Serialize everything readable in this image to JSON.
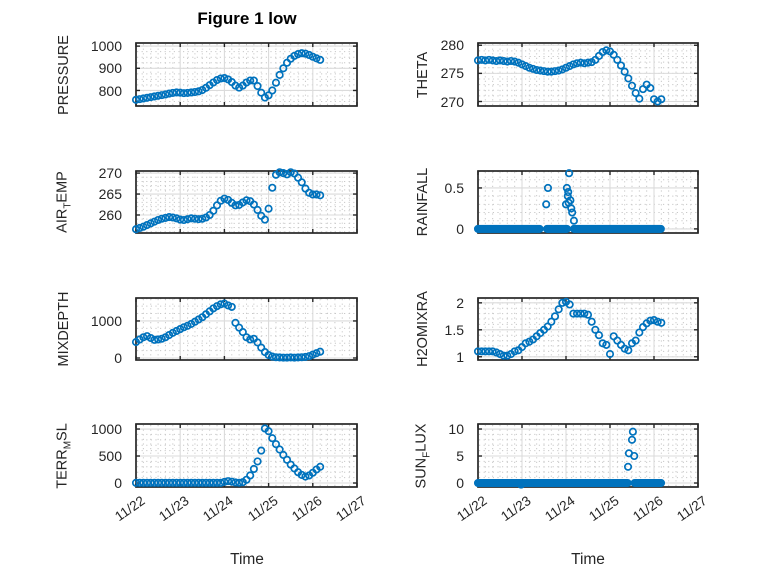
{
  "title": "Figure 1 low",
  "xlabel": "Time",
  "colors": {
    "marker": "#0072BD",
    "axis": "#262626",
    "text": "#262626",
    "major_grid": "#dbdbdb",
    "minor_grid": "#c8c8c8",
    "background": "#ffffff"
  },
  "x_ticks": [
    "11/22",
    "11/23",
    "11/24",
    "11/25",
    "11/26",
    "11/27"
  ],
  "chart_data": {
    "type": "scatter",
    "x_unit": "days from 11/22",
    "x_range_days": [
      0,
      5
    ],
    "minor_x_step_days": 0.16667,
    "plots": [
      {
        "id": "pressure",
        "col": 0,
        "row": 0,
        "ylabel": {
          "pre": "PRESSURE",
          "sub": "",
          "post": ""
        },
        "yticks": [
          800,
          900,
          1000
        ],
        "ylim": [
          730,
          1014
        ],
        "minor_y": 25,
        "series": {
          "x0": 0,
          "dx": 0.083333,
          "values": [
            758,
            761,
            764,
            767,
            770,
            773,
            776,
            779,
            782,
            786,
            789,
            791,
            790,
            788,
            789,
            791,
            793,
            796,
            802,
            812,
            824,
            836,
            847,
            854,
            856,
            850,
            838,
            822,
            813,
            822,
            836,
            845,
            845,
            820,
            790,
            768,
            778,
            800,
            835,
            870,
            900,
            925,
            943,
            956,
            964,
            968,
            966,
            960,
            952,
            945,
            938
          ]
        }
      },
      {
        "id": "theta",
        "col": 1,
        "row": 0,
        "ylabel": {
          "pre": "THETA",
          "sub": "",
          "post": ""
        },
        "yticks": [
          270,
          275,
          280
        ],
        "ylim": [
          269.2,
          280.4
        ],
        "minor_y": 1,
        "series": {
          "x0": 0,
          "dx": 0.083333,
          "values": [
            277.3,
            277.4,
            277.3,
            277.4,
            277.3,
            277.2,
            277.3,
            277.2,
            277.1,
            277.2,
            277.1,
            276.9,
            276.6,
            276.3,
            276.0,
            275.8,
            275.6,
            275.5,
            275.4,
            275.3,
            275.3,
            275.4,
            275.5,
            275.7,
            276.0,
            276.3,
            276.6,
            276.8,
            276.9,
            276.8,
            276.9,
            277.0,
            277.4,
            278.1,
            278.8,
            279.1,
            278.9,
            278.3,
            277.4,
            276.4,
            275.3,
            274.1,
            272.8,
            271.5,
            270.5,
            272.2,
            273.0,
            272.4,
            270.4,
            270.0,
            270.4
          ]
        }
      },
      {
        "id": "air-temp",
        "col": 0,
        "row": 1,
        "ylabel": {
          "pre": "AIR",
          "sub": "T",
          "post": "EMP"
        },
        "yticks": [
          260,
          265,
          270
        ],
        "ylim": [
          255.7,
          270.5
        ],
        "minor_y": 1,
        "series": {
          "x0": 0,
          "dx": 0.083333,
          "values": [
            256.6,
            256.9,
            257.2,
            257.6,
            258.0,
            258.4,
            258.8,
            259.1,
            259.3,
            259.5,
            259.4,
            259.2,
            258.9,
            258.8,
            259.0,
            259.2,
            259.1,
            259.0,
            259.1,
            259.4,
            260.0,
            261.0,
            262.3,
            263.4,
            263.9,
            263.6,
            262.9,
            262.3,
            262.4,
            263.0,
            263.5,
            263.3,
            262.5,
            261.2,
            259.8,
            258.9,
            261.5,
            266.5,
            269.6,
            270.2,
            270.0,
            269.7,
            270.2,
            269.9,
            268.9,
            267.8,
            266.3,
            265.3,
            264.9,
            264.9,
            264.7
          ]
        }
      },
      {
        "id": "rainfall",
        "col": 1,
        "row": 1,
        "ylabel": {
          "pre": "RAINFALL",
          "sub": "",
          "post": ""
        },
        "yticks": [
          0,
          0.5
        ],
        "ylim": [
          -0.05,
          0.707
        ],
        "minor_y": 0.1,
        "series": {
          "baseline_value": 0,
          "baseline_step": 0.025,
          "baseline_segments": [
            [
              0,
              1.41
            ],
            [
              1.57,
              2.04
            ],
            [
              2.18,
              4.16
            ]
          ],
          "points": [
            [
              1.55,
              0.3
            ],
            [
              1.59,
              0.5
            ],
            [
              2.0,
              0.3
            ],
            [
              2.02,
              0.5
            ],
            [
              2.07,
              0.68
            ],
            [
              2.05,
              0.45
            ],
            [
              2.04,
              0.4
            ],
            [
              2.06,
              0.32
            ],
            [
              2.1,
              0.35
            ],
            [
              2.12,
              0.25
            ],
            [
              2.14,
              0.2
            ],
            [
              2.18,
              0.1
            ]
          ]
        }
      },
      {
        "id": "mixdepth",
        "col": 0,
        "row": 2,
        "ylabel": {
          "pre": "MIXDEPTH",
          "sub": "",
          "post": ""
        },
        "yticks": [
          0,
          1000
        ],
        "ylim": [
          -54,
          1620
        ],
        "minor_y": 200,
        "series": {
          "x0": 0,
          "dx": 0.083333,
          "values": [
            430,
            500,
            560,
            590,
            540,
            490,
            500,
            520,
            560,
            620,
            680,
            730,
            780,
            830,
            870,
            920,
            980,
            1040,
            1100,
            1180,
            1260,
            1340,
            1400,
            1450,
            1470,
            1420,
            1380,
            950,
            820,
            700,
            560,
            500,
            520,
            420,
            280,
            160,
            80,
            40,
            20,
            15,
            10,
            10,
            15,
            10,
            15,
            20,
            30,
            50,
            90,
            130,
            170
          ]
        }
      },
      {
        "id": "h2omixra",
        "col": 1,
        "row": 2,
        "ylabel": {
          "pre": "H2OMIXRA",
          "sub": "",
          "post": ""
        },
        "yticks": [
          1,
          1.5,
          2
        ],
        "ylim": [
          0.94,
          2.09
        ],
        "minor_y": 0.1,
        "series": {
          "x0": 0,
          "dx": 0.083333,
          "values": [
            1.1,
            1.1,
            1.1,
            1.1,
            1.1,
            1.08,
            1.05,
            1.02,
            1.02,
            1.05,
            1.1,
            1.12,
            1.18,
            1.25,
            1.28,
            1.32,
            1.38,
            1.44,
            1.5,
            1.56,
            1.65,
            1.75,
            1.88,
            2.0,
            2.02,
            1.97,
            1.8,
            1.8,
            1.8,
            1.8,
            1.78,
            1.65,
            1.5,
            1.4,
            1.25,
            1.22,
            1.05,
            1.38,
            1.3,
            1.22,
            1.15,
            1.12,
            1.25,
            1.3,
            1.45,
            1.55,
            1.62,
            1.67,
            1.68,
            1.65,
            1.63
          ]
        }
      },
      {
        "id": "terr-msl",
        "col": 0,
        "row": 3,
        "ylabel": {
          "pre": "TERR",
          "sub": "M",
          "post": "SL"
        },
        "yticks": [
          0,
          500,
          1000
        ],
        "ylim": [
          -74,
          1093
        ],
        "minor_y": 100,
        "series": {
          "x0": 0,
          "dx": 0.083333,
          "values": [
            3,
            3,
            3,
            3,
            3,
            3,
            3,
            3,
            3,
            3,
            3,
            3,
            3,
            3,
            3,
            3,
            3,
            3,
            3,
            3,
            3,
            3,
            3,
            3,
            20,
            35,
            25,
            10,
            5,
            15,
            60,
            140,
            260,
            400,
            600,
            1010,
            960,
            830,
            720,
            620,
            520,
            430,
            340,
            270,
            200,
            150,
            120,
            140,
            190,
            250,
            300
          ]
        }
      },
      {
        "id": "sun-flux",
        "col": 1,
        "row": 3,
        "ylabel": {
          "pre": "SUN",
          "sub": "F",
          "post": "LUX"
        },
        "yticks": [
          0,
          5,
          10
        ],
        "ylim": [
          -0.74,
          10.93
        ],
        "minor_y": 1,
        "series": {
          "baseline_value": 0,
          "baseline_step": 0.025,
          "baseline_segments": [
            [
              0,
              3.41
            ],
            [
              3.56,
              4.16
            ]
          ],
          "points": [
            [
              0.98,
              -0.3
            ],
            [
              3.52,
              9.5
            ],
            [
              3.5,
              8.0
            ],
            [
              3.43,
              5.5
            ],
            [
              3.55,
              5.0
            ],
            [
              3.41,
              3.0
            ]
          ]
        }
      }
    ]
  }
}
